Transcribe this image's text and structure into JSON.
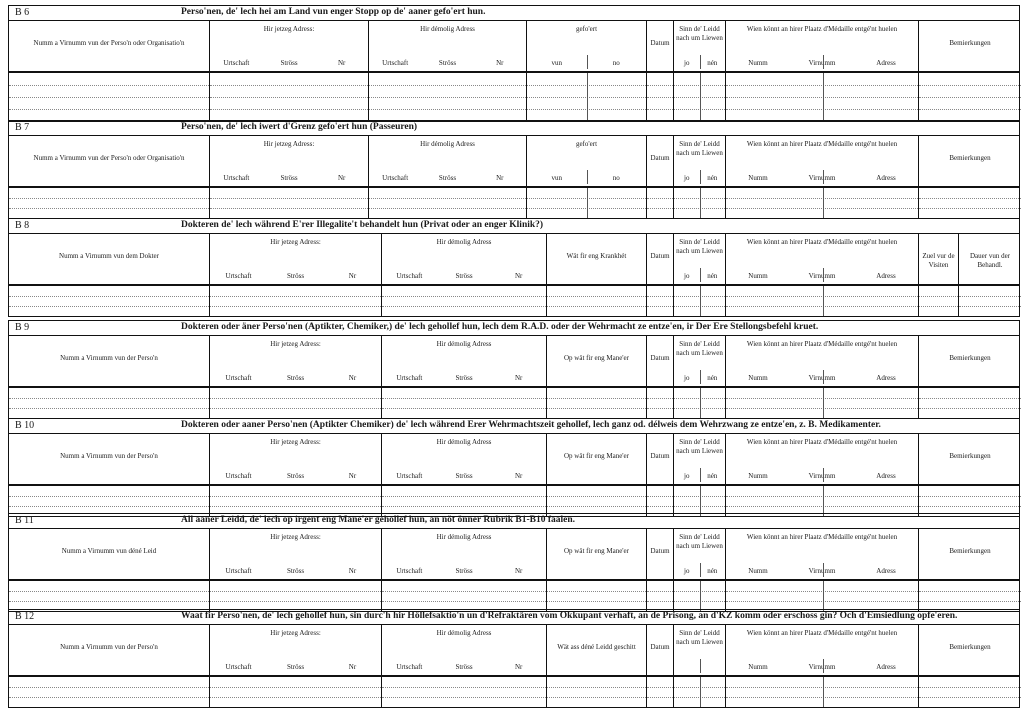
{
  "sections": [
    {
      "id": "B 6",
      "title": "Perso'nen, de' lech hei am Land vun enger Stopp  op de' aaner gefo'ert hun.",
      "layout": "a",
      "lines": 3,
      "columns": [
        {
          "label": "Numm a Virnumm vun der Perso'n oder Organisatio'n"
        },
        {
          "label": "Hir jetzeg Adress:",
          "sub": [
            "Urtschaft",
            "Ströss",
            "Nr"
          ]
        },
        {
          "label": "Hir démolig Adress",
          "sub": [
            "Urtschaft",
            "Ströss",
            "Nr"
          ]
        },
        {
          "label": "gefo'ert",
          "sub": [
            "vun",
            "no"
          ]
        },
        {
          "label": "Datum"
        },
        {
          "label": "Sinn  de' Leidd  nach um Liewen",
          "sub": [
            "jo",
            "nén"
          ]
        },
        {
          "label": "Wien  könnt  an  hirer  Plaatz  d'Médaille entgé'nt huelen",
          "sub": [
            "Numm",
            "Virnumm",
            "Adress"
          ]
        },
        {
          "label": "Bemierkungen"
        }
      ]
    },
    {
      "id": "B 7",
      "title": "Perso'nen, de' lech iwert d'Grenz gefo'ert hun  (Passeuren)",
      "layout": "a",
      "lines": 2,
      "columns": [
        {
          "label": "Numm a Virnumm vun der Perso'n oder Organisatio'n"
        },
        {
          "label": "Hir jetzeg Adress:",
          "sub": [
            "Urtschaft",
            "Ströss",
            "Nr"
          ]
        },
        {
          "label": "Hir démolig Adress",
          "sub": [
            "Urtschaft",
            "Ströss",
            "Nr"
          ]
        },
        {
          "label": "gefo'ert",
          "sub": [
            "vun",
            "no"
          ]
        },
        {
          "label": "Datum"
        },
        {
          "label": "Sinn  de' Leidd  nach um Liewen",
          "sub": [
            "jo",
            "nén"
          ]
        },
        {
          "label": "Wien  könnt  an  hirer  Plaatz  d'Médaille entgé'nt huelen",
          "sub": [
            "Numm",
            "Virnumm",
            "Adress"
          ]
        },
        {
          "label": "Bemierkungen"
        }
      ]
    },
    {
      "id": "B 8",
      "title": "Dokteren de' lech während E'rer Illegalite't behandelt hun (Privat oder an enger Klinik?)",
      "layout": "b",
      "lines": 2,
      "columns": [
        {
          "label": "Numm a Virnumm vun dem Dokter"
        },
        {
          "label": "Hir jetzeg Adress:",
          "sub": [
            "Urtschaft",
            "Ströss",
            "Nr"
          ]
        },
        {
          "label": "Hir démolig Adress",
          "sub": [
            "Urtschaft",
            "Ströss",
            "Nr"
          ]
        },
        {
          "label": "Wät fir eng Krankhét"
        },
        {
          "label": "Datum"
        },
        {
          "label": "Sinn  de' Leidd  nach um Liewen",
          "sub": [
            "jo",
            "nén"
          ]
        },
        {
          "label": "Wien  könnt  an  hirer  Plaatz  d'Médaille entgé'nt huelen",
          "sub": [
            "Numm",
            "Virnumm",
            "Adress"
          ]
        },
        {
          "label": "Zuel vur de Visiten"
        },
        {
          "label": "Dauer vun der Behandl."
        }
      ]
    },
    {
      "id": "B 9",
      "title": "Dokteren oder äner Perso'nen (Aptikter, Chemiker,) de' lech gehollef hun, lech dem R.A.D. oder der Wehrmacht ze entze'en, ir Der Ere Stellongsbefehl kruet.",
      "layout": "c",
      "lines": 2,
      "columns": [
        {
          "label": "Numm a Virnumm vun der Perso'n"
        },
        {
          "label": "Hir jetzeg Adress:",
          "sub": [
            "Urtschaft",
            "Ströss",
            "Nr"
          ]
        },
        {
          "label": "Hir démolig Adress",
          "sub": [
            "Urtschaft",
            "Ströss",
            "Nr"
          ]
        },
        {
          "label": "Op wät fir eng Mane'er"
        },
        {
          "label": "Datum"
        },
        {
          "label": "Sinn  de' Leidd  nach um Liewen",
          "sub": [
            "jo",
            "nén"
          ]
        },
        {
          "label": "Wien  könnt  an  hirer  Plaatz  d'Médaille entgé'nt huelen",
          "sub": [
            "Numm",
            "Virnumm",
            "Adress"
          ]
        },
        {
          "label": "Bemierkungen"
        }
      ]
    },
    {
      "id": "B 10",
      "title": "Dokteren oder aaner Perso'nen (Aptikter Chemiker) de' lech während Erer Wehrmachtszeit gehollef, lech ganz od. délweis dem Wehrzwang ze entze'en, z. B. Medikamenter.",
      "layout": "c",
      "lines": 2,
      "columns": [
        {
          "label": "Numm a Virnumm vun der Perso'n"
        },
        {
          "label": "Hir jetzeg Adress:",
          "sub": [
            "Urtschaft",
            "Ströss",
            "Nr"
          ]
        },
        {
          "label": "Hir démolig Adress",
          "sub": [
            "Urtschaft",
            "Ströss",
            "Nr"
          ]
        },
        {
          "label": "Op wät fir eng Mane'er"
        },
        {
          "label": "Datum"
        },
        {
          "label": "Sinn  de' Leidd  nach um Liewen",
          "sub": [
            "jo",
            "nén"
          ]
        },
        {
          "label": "Wien  könnt  an  hirer  Plaatz  d'Médaille entgé'nt huelen",
          "sub": [
            "Numm",
            "Virnumm",
            "Adress"
          ]
        },
        {
          "label": "Bemierkungen"
        }
      ]
    },
    {
      "id": "B 11",
      "title": "All aaner Leidd, de' lech op irgent eng Mane'er gehollef hun, an nöt önner Rubrik B1-B10 faalen.",
      "layout": "c",
      "lines": 2,
      "columns": [
        {
          "label": "Numm a Virnumm vun déné Leid"
        },
        {
          "label": "Hir jetzeg Adress:",
          "sub": [
            "Urtschaft",
            "Ströss",
            "Nr"
          ]
        },
        {
          "label": "Hir démolig Adress",
          "sub": [
            "Urtschaft",
            "Ströss",
            "Nr"
          ]
        },
        {
          "label": "Op wät fir eng Mane'er"
        },
        {
          "label": "Datum"
        },
        {
          "label": "Sinn  de' Leidd  nach um Liewen",
          "sub": [
            "jo",
            "nén"
          ]
        },
        {
          "label": "Wien  könnt  an  hirer  Plaatz  d'Médaille entgé'nt huelen",
          "sub": [
            "Numm",
            "Virnumm",
            "Adress"
          ]
        },
        {
          "label": "Bemierkungen"
        }
      ]
    },
    {
      "id": "B 12",
      "title": "Waat fir Perso'nen, de' lech gehollef hun, sin durc'h hir Höllefsaktio'n un d'Refraktären vom Okkupant verhaft, an de Prisong, an d'KZ komm oder  erschoss gin? Och d'Emsiedlung opfe'eren.",
      "layout": "c",
      "lines": 2,
      "columns": [
        {
          "label": "Numm a Virnumm vun der Perso'n"
        },
        {
          "label": "Hir jetzeg Adress:",
          "sub": [
            "Urtschaft",
            "Ströss",
            "Nr"
          ]
        },
        {
          "label": "Hir démolig Adress",
          "sub": [
            "Urtschaft",
            "Ströss",
            "Nr"
          ]
        },
        {
          "label": "Wät ass déné Leidd geschitt"
        },
        {
          "label": "Datum"
        },
        {
          "label": "Sinn  de' Leidd  nach um Liewen",
          "sub": [
            "",
            ""
          ]
        },
        {
          "label": "Wien  könnt  an  hirer  Plaatz  d'Médaille entgé'nt huelen",
          "sub": [
            "Numm",
            "Virnumm",
            "Adress"
          ]
        },
        {
          "label": "Bemierkungen"
        }
      ]
    }
  ]
}
